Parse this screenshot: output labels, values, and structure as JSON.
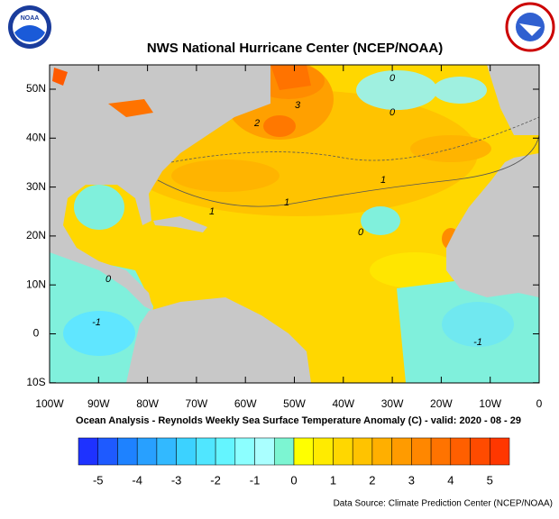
{
  "header": {
    "title": "NWS National Hurricane Center (NCEP/NOAA)",
    "logo_text": "NOAA"
  },
  "map": {
    "lat_labels": [
      "50N",
      "40N",
      "30N",
      "20N",
      "10N",
      "0",
      "10S"
    ],
    "lon_labels": [
      "100W",
      "90W",
      "80W",
      "70W",
      "60W",
      "50W",
      "40W",
      "30W",
      "20W",
      "10W",
      "0"
    ],
    "contour_labels": [
      "1",
      "0",
      "0",
      "0",
      "1",
      "2",
      "3",
      "-1",
      "0",
      "1",
      "-1"
    ],
    "caption": "Ocean Analysis - Reynolds Weekly Sea Surface Temperature Anomaly (C) - valid: 2020 - 08 - 29"
  },
  "colorbar": {
    "labels": [
      -5,
      -4,
      -3,
      -2,
      -1,
      0,
      1,
      2,
      3,
      4,
      5
    ],
    "colors": [
      "#1e32ff",
      "#1e5aff",
      "#1e82ff",
      "#28a0ff",
      "#32b9ff",
      "#3cd2ff",
      "#50e6ff",
      "#64f5ff",
      "#8cffff",
      "#aaffff",
      "#7cf5d2",
      "#ffff00",
      "#ffeb00",
      "#ffd700",
      "#ffc300",
      "#ffaf00",
      "#ff9b00",
      "#ff8700",
      "#ff7300",
      "#ff5f00",
      "#ff4b00",
      "#ff3700"
    ]
  },
  "footer": {
    "source": "Data Source: Climate Prediction Center (NCEP/NOAA)"
  }
}
